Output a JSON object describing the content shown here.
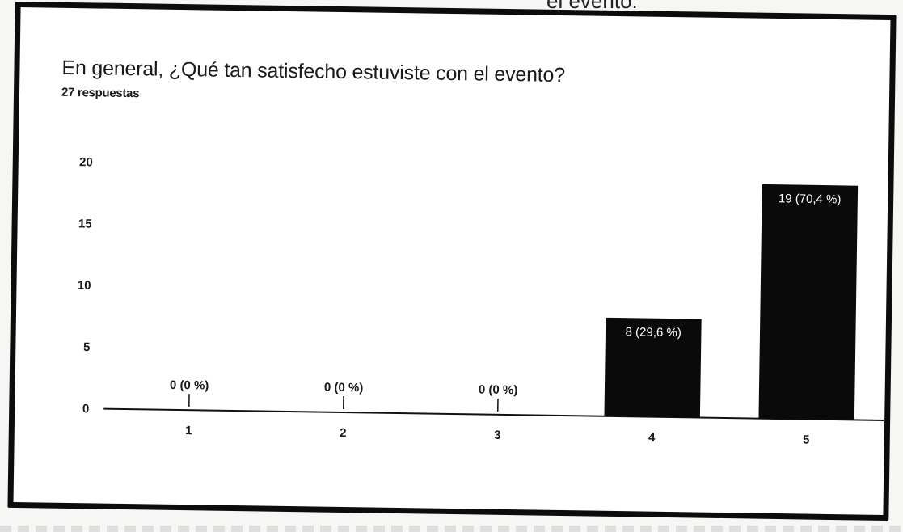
{
  "page_top_fragment": "el evento.",
  "chart_data": {
    "type": "bar",
    "title": "En general, ¿Qué tan satisfecho estuviste con el evento?",
    "subtitle": "27 respuestas",
    "categories": [
      "1",
      "2",
      "3",
      "4",
      "5"
    ],
    "values": [
      0,
      0,
      0,
      8,
      19
    ],
    "data_labels": [
      "0 (0 %)",
      "0 (0 %)",
      "0 (0 %)",
      "8 (29,6 %)",
      "19 (70,4 %)"
    ],
    "yticks": [
      0,
      5,
      10,
      15,
      20
    ],
    "ylim": [
      0,
      20
    ],
    "xlabel": "",
    "ylabel": "",
    "grid": false,
    "legend": "none",
    "colors": {
      "bar": "#0a0a0a",
      "bar_label": "#ffffff",
      "text": "#1a1a1a",
      "axis": "#111111"
    }
  }
}
